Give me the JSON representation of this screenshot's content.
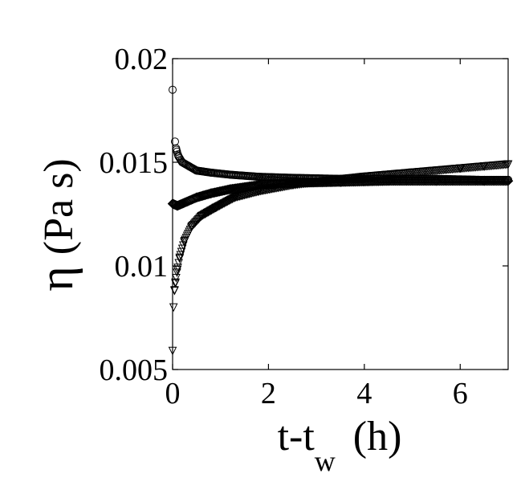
{
  "chart_data": {
    "type": "scatter",
    "title": "",
    "xlabel": {
      "main": "t-t",
      "subscript": "w",
      "unit": "(h)"
    },
    "ylabel": {
      "symbol": "η",
      "unit": "(Pa s)"
    },
    "xlim": [
      0,
      7
    ],
    "ylim": [
      0.005,
      0.02
    ],
    "xticks": [
      0,
      2,
      4,
      6
    ],
    "xtick_labels": [
      "0",
      "2",
      "4",
      "6"
    ],
    "yticks": [
      0.005,
      0.01,
      0.015,
      0.02
    ],
    "ytick_labels": [
      "0.005",
      "0.01",
      "0.015",
      "0.02"
    ],
    "grid": false,
    "series": [
      {
        "marker": "circle",
        "points": [
          [
            0.0,
            0.0185
          ],
          [
            0.05,
            0.016
          ],
          [
            0.08,
            0.0156
          ],
          [
            0.12,
            0.0153
          ],
          [
            0.2,
            0.015
          ],
          [
            0.35,
            0.0148
          ],
          [
            0.5,
            0.0146
          ],
          [
            0.8,
            0.0145
          ],
          [
            1.2,
            0.0144
          ],
          [
            1.8,
            0.0143
          ],
          [
            2.5,
            0.01425
          ],
          [
            3.5,
            0.0142
          ],
          [
            4.5,
            0.0142
          ],
          [
            5.5,
            0.0142
          ],
          [
            6.5,
            0.01415
          ],
          [
            7.0,
            0.01415
          ]
        ]
      },
      {
        "marker": "diamond",
        "points": [
          [
            0.0,
            0.013
          ],
          [
            0.1,
            0.0129
          ],
          [
            0.3,
            0.0131
          ],
          [
            0.5,
            0.0133
          ],
          [
            0.8,
            0.0135
          ],
          [
            1.2,
            0.0137
          ],
          [
            1.8,
            0.0139
          ],
          [
            2.5,
            0.014
          ],
          [
            3.5,
            0.01405
          ],
          [
            4.5,
            0.0141
          ],
          [
            5.5,
            0.0141
          ],
          [
            6.5,
            0.0141
          ],
          [
            7.0,
            0.0141
          ]
        ]
      },
      {
        "marker": "triangle-down",
        "points": [
          [
            0.0,
            0.0059
          ],
          [
            0.02,
            0.008
          ],
          [
            0.04,
            0.0088
          ],
          [
            0.06,
            0.0092
          ],
          [
            0.1,
            0.0098
          ],
          [
            0.15,
            0.0104
          ],
          [
            0.25,
            0.0112
          ],
          [
            0.4,
            0.0119
          ],
          [
            0.6,
            0.0124
          ],
          [
            0.9,
            0.0128
          ],
          [
            1.3,
            0.0133
          ],
          [
            1.8,
            0.0136
          ],
          [
            2.5,
            0.0139
          ],
          [
            3.2,
            0.0141
          ],
          [
            4.0,
            0.0143
          ],
          [
            5.0,
            0.0145
          ],
          [
            6.0,
            0.0147
          ],
          [
            6.5,
            0.0148
          ],
          [
            7.0,
            0.0149
          ]
        ]
      }
    ]
  }
}
